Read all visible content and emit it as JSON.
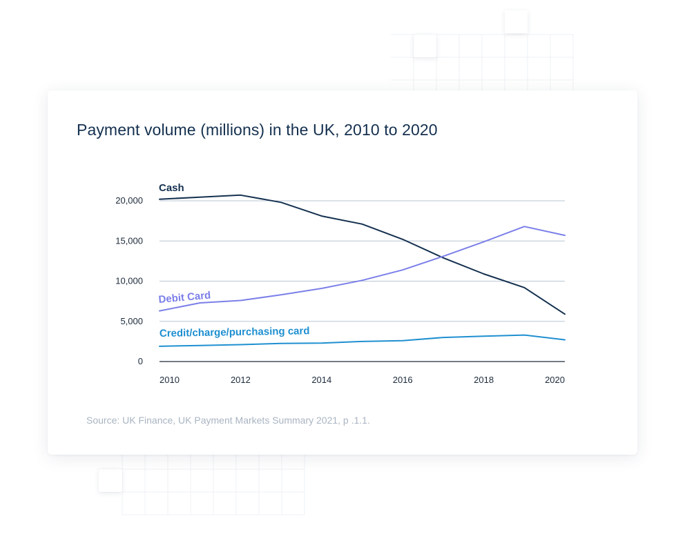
{
  "colors": {
    "cash": "#14304f",
    "debit": "#7b7fe8",
    "credit": "#1e8fd0",
    "gridline": "#b9c6d3",
    "axis": "#1b2a3a"
  },
  "chart_data": {
    "type": "line",
    "title": "Payment volume (millions) in the UK, 2010 to 2020",
    "source": "Source: UK Finance, UK Payment Markets Summary 2021, p .1.1.",
    "xlabel": "",
    "ylabel": "",
    "x": [
      2010,
      2011,
      2012,
      2013,
      2014,
      2015,
      2016,
      2017,
      2018,
      2019,
      2020
    ],
    "x_ticks": [
      "2010",
      "2012",
      "2014",
      "2016",
      "2018",
      "2020"
    ],
    "y_ticks": [
      "0",
      "5,000",
      "10,000",
      "15,000",
      "20,000"
    ],
    "ylim": [
      0,
      20000
    ],
    "grid": true,
    "series": [
      {
        "key": "cash",
        "name": "Cash",
        "values": [
          20200,
          20450,
          20700,
          19800,
          18100,
          17100,
          15200,
          12900,
          10900,
          9200,
          5900
        ]
      },
      {
        "key": "debit",
        "name": "Debit Card",
        "values": [
          6300,
          7300,
          7600,
          8300,
          9100,
          10100,
          11400,
          13100,
          14900,
          16800,
          15700
        ]
      },
      {
        "key": "credit",
        "name": "Credit/charge/purchasing card",
        "values": [
          1900,
          2000,
          2100,
          2250,
          2300,
          2500,
          2600,
          3000,
          3150,
          3300,
          2700
        ]
      }
    ]
  }
}
